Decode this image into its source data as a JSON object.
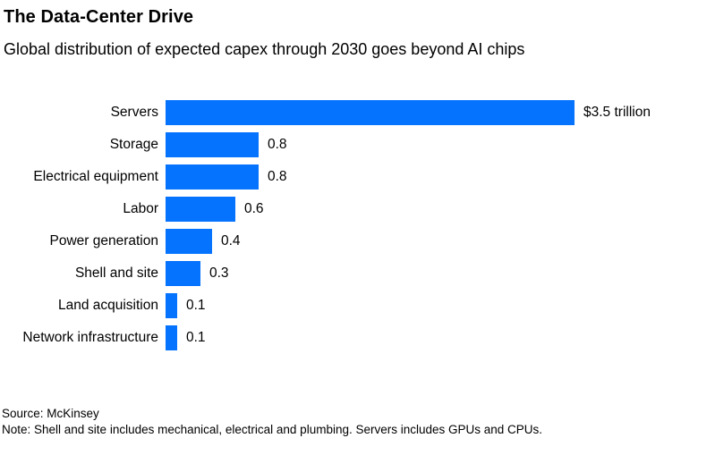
{
  "header": {
    "title": "The Data-Center Drive",
    "subtitle": "Global distribution of expected capex through 2030 goes beyond AI chips"
  },
  "chart_data": {
    "type": "bar",
    "orientation": "horizontal",
    "title": "The Data-Center Drive",
    "subtitle": "Global distribution of expected capex through 2030 goes beyond AI chips",
    "unit": "trillion USD",
    "categories": [
      "Servers",
      "Storage",
      "Electrical equipment",
      "Labor",
      "Power generation",
      "Shell and site",
      "Land acquisition",
      "Network infrastructure"
    ],
    "values": [
      3.5,
      0.8,
      0.8,
      0.6,
      0.4,
      0.3,
      0.1,
      0.1
    ],
    "value_labels": [
      "$3.5 trillion",
      "0.8",
      "0.8",
      "0.6",
      "0.4",
      "0.3",
      "0.1",
      "0.1"
    ],
    "xlim": [
      0,
      3.5
    ],
    "grid": false,
    "legend": false,
    "bar_color": "#0673FF",
    "text_color": "#000000"
  },
  "footer": {
    "source": "Source: McKinsey",
    "note": "Note: Shell and site includes mechanical, electrical and plumbing. Servers includes GPUs and CPUs."
  }
}
